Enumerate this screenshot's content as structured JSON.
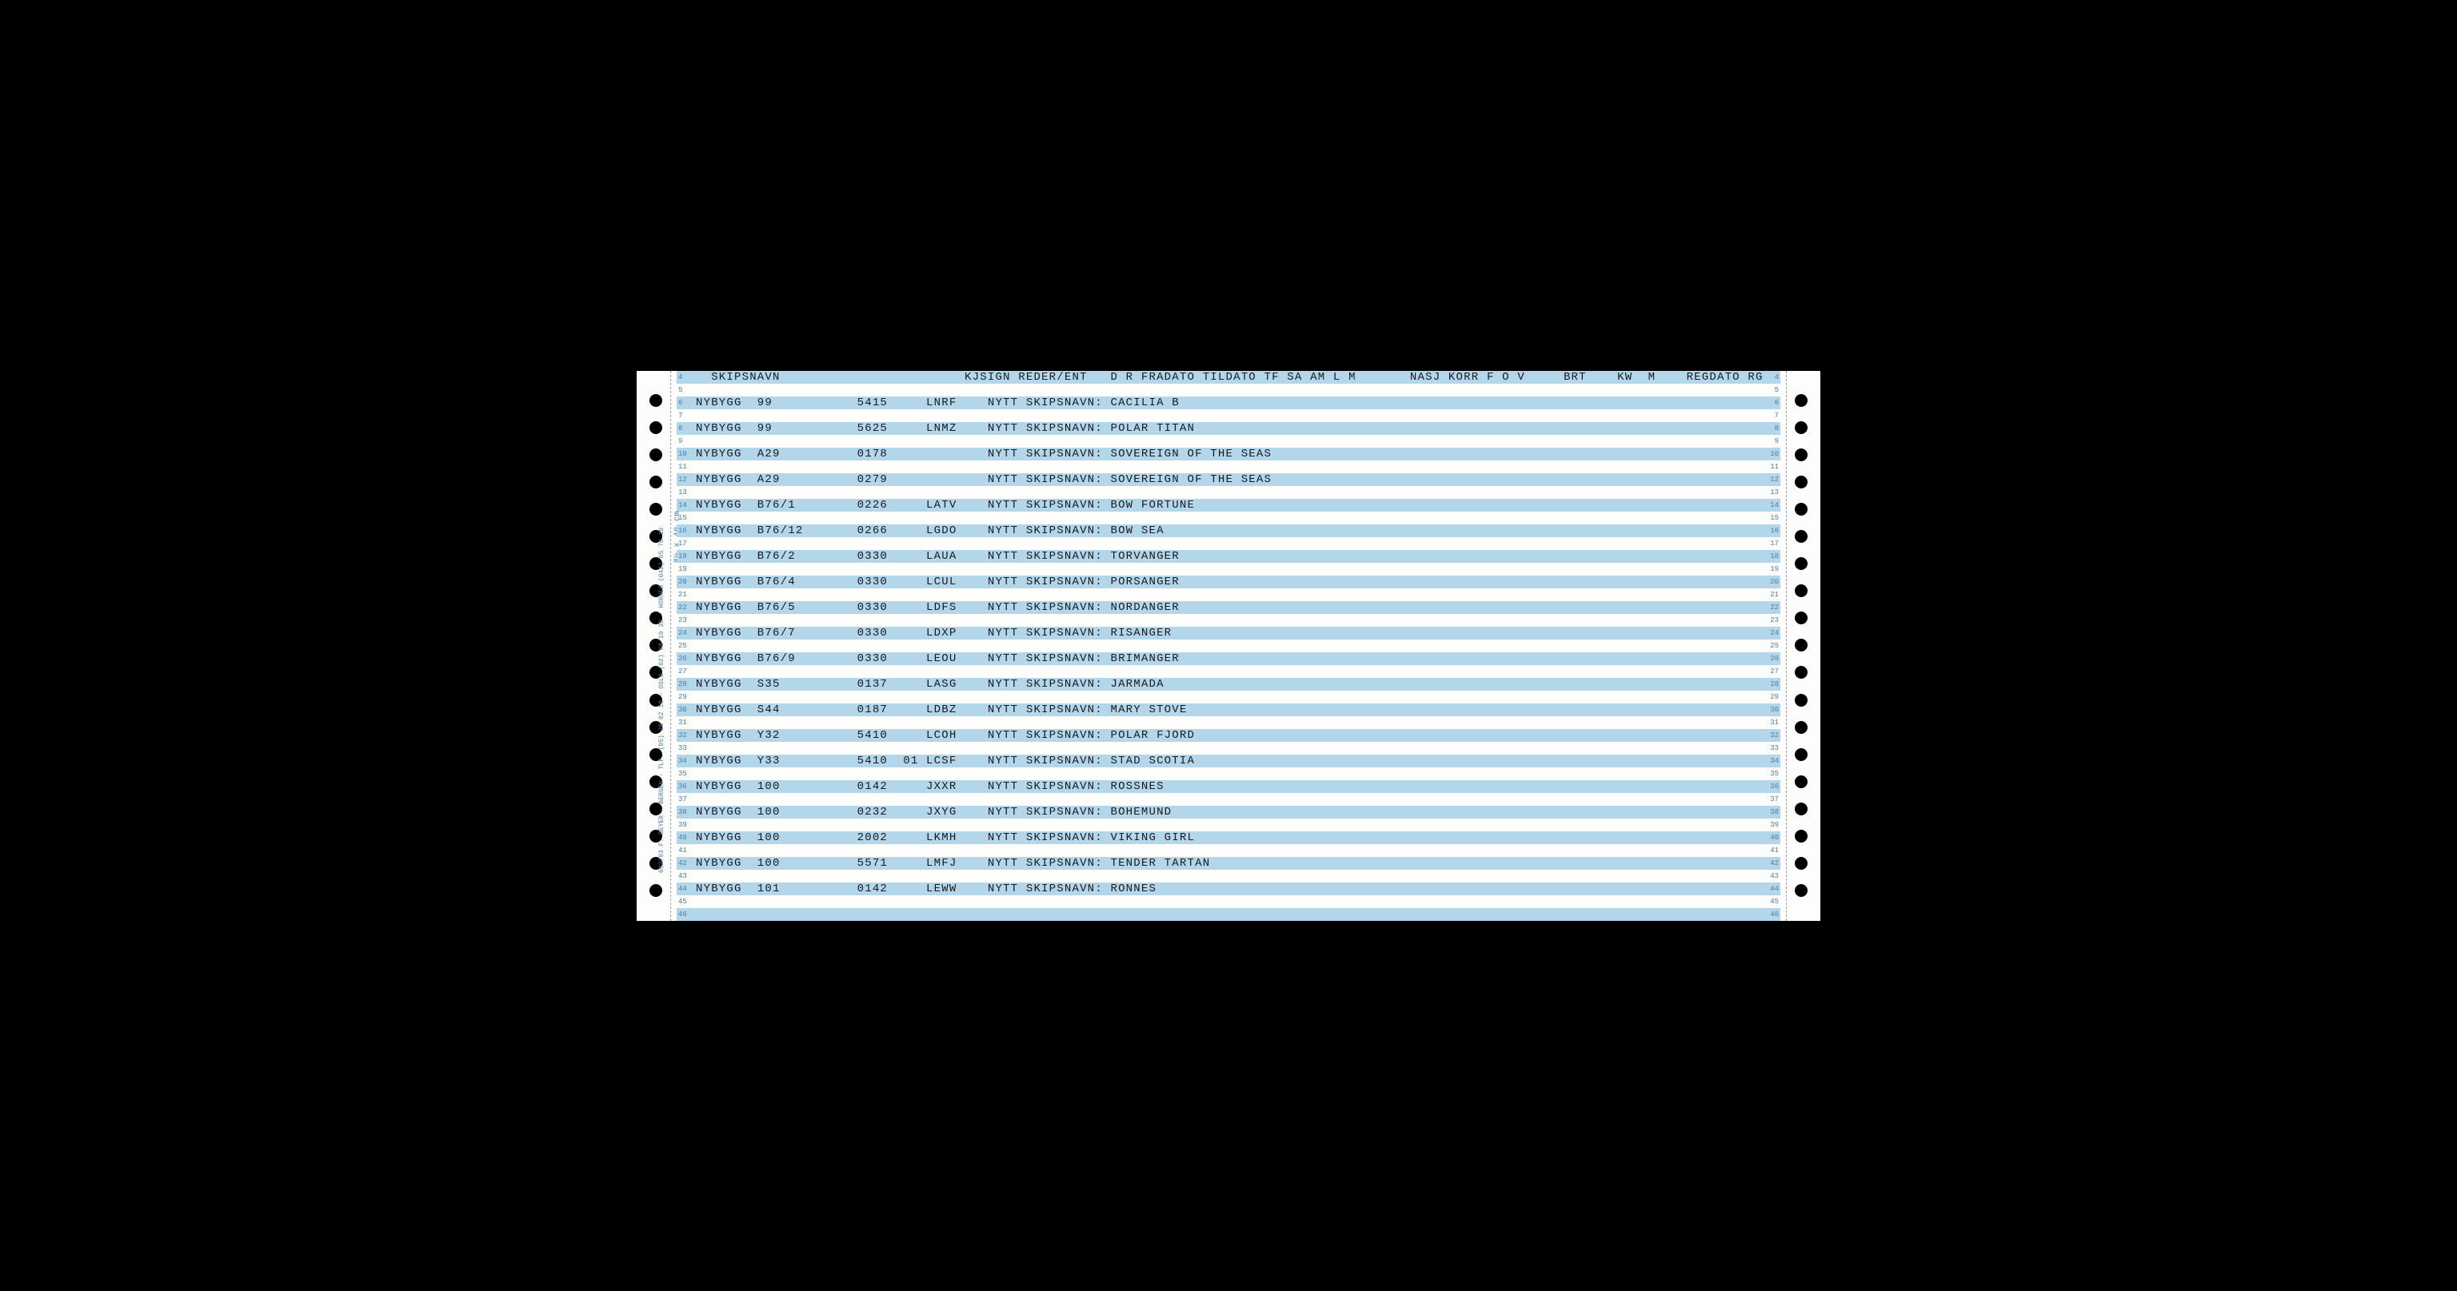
{
  "paper": {
    "background": "#fdfdfb",
    "stripe_color": "#b4d6ea",
    "text_color": "#1a1a1a",
    "margin_text_color": "#4a7aa8",
    "font": "Courier New",
    "sprocket_holes_per_side": 19,
    "form_size_label": "8½ x 40 cm",
    "manufacturer_label": "002793 F. BEYER - BERGEN - TLF. (05) 28 02 10 - OSLO (02) 68 19 30 - HORNES (042) 65 70 10"
  },
  "header": {
    "text": "  SKIPSNAVN                        KJSIGN REDER/ENT   D R FRADATO TILDATO TF SA AM L M       NASJ KORR F O V     BRT    KW  M    REGDATO RG"
  },
  "rows": [
    {
      "n": 4,
      "stripe": true,
      "header": true
    },
    {
      "n": 5,
      "stripe": false,
      "text": ""
    },
    {
      "n": 6,
      "stripe": true,
      "text": "NYBYGG  99           5415     LNRF    NYTT SKIPSNAVN: CACILIA B"
    },
    {
      "n": 7,
      "stripe": false,
      "text": ""
    },
    {
      "n": 8,
      "stripe": true,
      "text": "NYBYGG  99           5625     LNMZ    NYTT SKIPSNAVN: POLAR TITAN"
    },
    {
      "n": 9,
      "stripe": false,
      "text": ""
    },
    {
      "n": 10,
      "stripe": true,
      "text": "NYBYGG  A29          0178             NYTT SKIPSNAVN: SOVEREIGN OF THE SEAS"
    },
    {
      "n": 11,
      "stripe": false,
      "text": ""
    },
    {
      "n": 12,
      "stripe": true,
      "text": "NYBYGG  A29          0279             NYTT SKIPSNAVN: SOVEREIGN OF THE SEAS"
    },
    {
      "n": 13,
      "stripe": false,
      "text": ""
    },
    {
      "n": 14,
      "stripe": true,
      "text": "NYBYGG  B76/1        0226     LATV    NYTT SKIPSNAVN: BOW FORTUNE"
    },
    {
      "n": 15,
      "stripe": false,
      "text": ""
    },
    {
      "n": 16,
      "stripe": true,
      "text": "NYBYGG  B76/12       0266     LGDO    NYTT SKIPSNAVN: BOW SEA"
    },
    {
      "n": 17,
      "stripe": false,
      "text": ""
    },
    {
      "n": 18,
      "stripe": true,
      "text": "NYBYGG  B76/2        0330     LAUA    NYTT SKIPSNAVN: TORVANGER"
    },
    {
      "n": 19,
      "stripe": false,
      "text": ""
    },
    {
      "n": 20,
      "stripe": true,
      "text": "NYBYGG  B76/4        0330     LCUL    NYTT SKIPSNAVN: PORSANGER"
    },
    {
      "n": 21,
      "stripe": false,
      "text": ""
    },
    {
      "n": 22,
      "stripe": true,
      "text": "NYBYGG  B76/5        0330     LDFS    NYTT SKIPSNAVN: NORDANGER"
    },
    {
      "n": 23,
      "stripe": false,
      "text": ""
    },
    {
      "n": 24,
      "stripe": true,
      "text": "NYBYGG  B76/7        0330     LDXP    NYTT SKIPSNAVN: RISANGER"
    },
    {
      "n": 25,
      "stripe": false,
      "text": ""
    },
    {
      "n": 26,
      "stripe": true,
      "text": "NYBYGG  B76/9        0330     LEOU    NYTT SKIPSNAVN: BRIMANGER"
    },
    {
      "n": 27,
      "stripe": false,
      "text": ""
    },
    {
      "n": 28,
      "stripe": true,
      "text": "NYBYGG  S35          0137     LASG    NYTT SKIPSNAVN: JARMADA"
    },
    {
      "n": 29,
      "stripe": false,
      "text": ""
    },
    {
      "n": 30,
      "stripe": true,
      "text": "NYBYGG  S44          0187     LDBZ    NYTT SKIPSNAVN: MARY STOVE"
    },
    {
      "n": 31,
      "stripe": false,
      "text": ""
    },
    {
      "n": 32,
      "stripe": true,
      "text": "NYBYGG  Y32          5410     LCOH    NYTT SKIPSNAVN: POLAR FJORD"
    },
    {
      "n": 33,
      "stripe": false,
      "text": ""
    },
    {
      "n": 34,
      "stripe": true,
      "text": "NYBYGG  Y33          5410  01 LCSF    NYTT SKIPSNAVN: STAD SCOTIA"
    },
    {
      "n": 35,
      "stripe": false,
      "text": ""
    },
    {
      "n": 36,
      "stripe": true,
      "text": "NYBYGG  100          0142     JXXR    NYTT SKIPSNAVN: ROSSNES"
    },
    {
      "n": 37,
      "stripe": false,
      "text": ""
    },
    {
      "n": 38,
      "stripe": true,
      "text": "NYBYGG  100          0232     JXYG    NYTT SKIPSNAVN: BOHEMUND"
    },
    {
      "n": 39,
      "stripe": false,
      "text": ""
    },
    {
      "n": 40,
      "stripe": true,
      "text": "NYBYGG  100          2002     LKMH    NYTT SKIPSNAVN: VIKING GIRL"
    },
    {
      "n": 41,
      "stripe": false,
      "text": ""
    },
    {
      "n": 42,
      "stripe": true,
      "text": "NYBYGG  100          5571     LMFJ    NYTT SKIPSNAVN: TENDER TARTAN"
    },
    {
      "n": 43,
      "stripe": false,
      "text": ""
    },
    {
      "n": 44,
      "stripe": true,
      "text": "NYBYGG  101          0142     LEWW    NYTT SKIPSNAVN: RONNES"
    },
    {
      "n": 45,
      "stripe": false,
      "text": ""
    },
    {
      "n": 46,
      "stripe": true,
      "text": ""
    }
  ]
}
